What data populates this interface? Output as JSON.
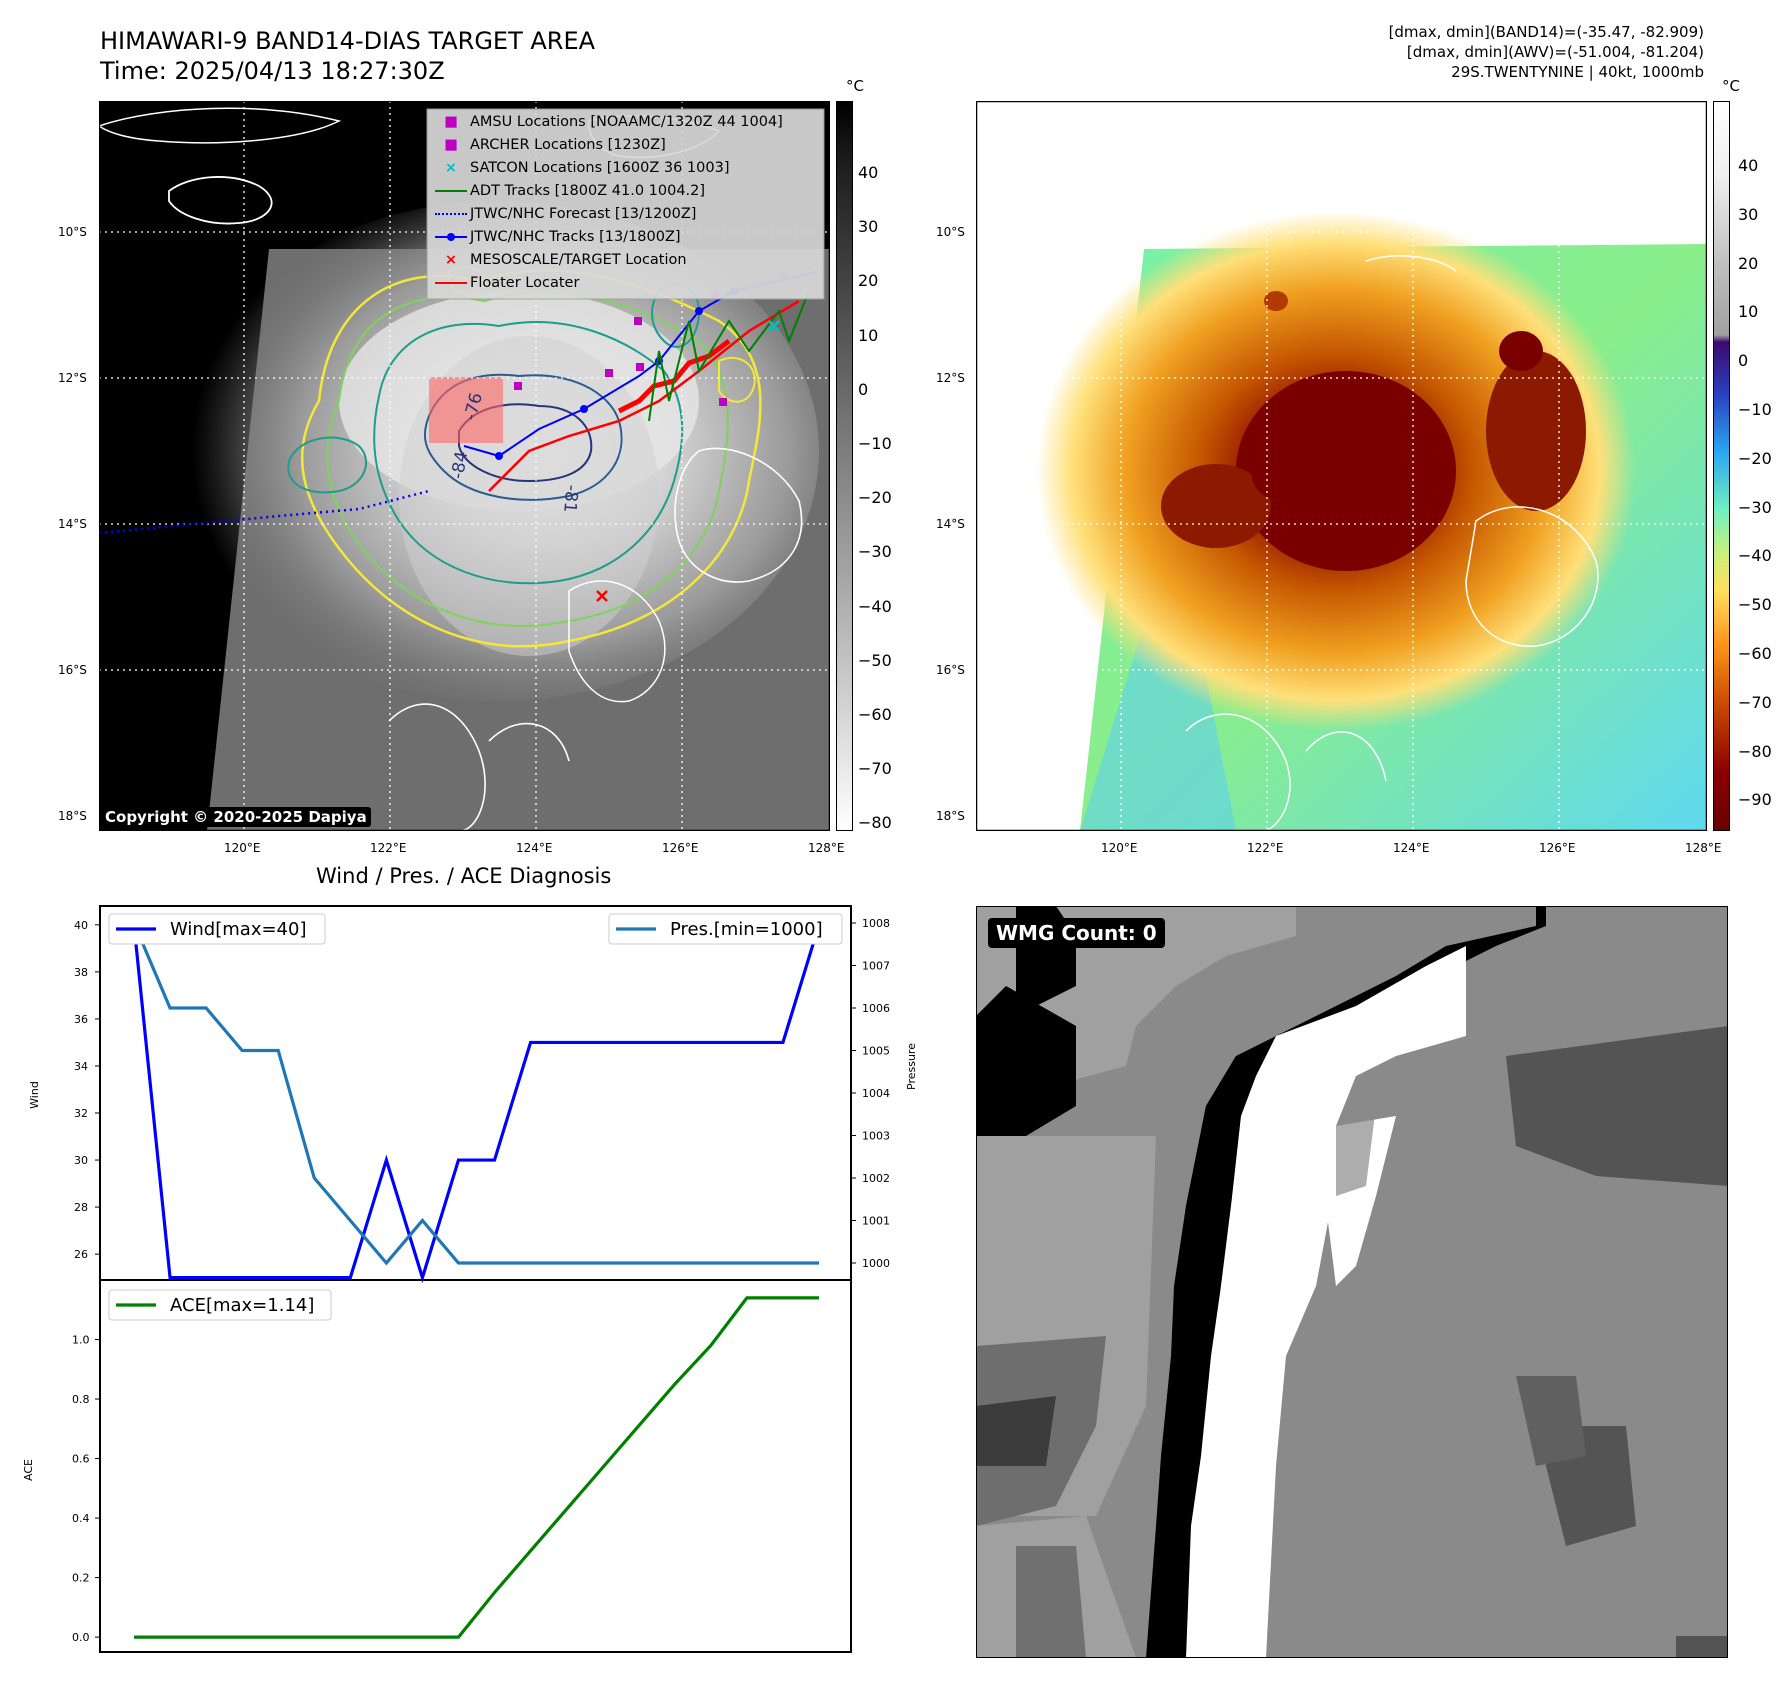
{
  "header": {
    "title_line1": "HIMAWARI-9 BAND14-DIAS TARGET AREA",
    "title_line2": "Time: 2025/04/13 18:27:30Z",
    "right_line1": "[dmax, dmin](BAND14)=(-35.47, -82.909)",
    "right_line2": "[dmax, dmin](AWV)=(-51.004, -81.204)",
    "right_line3": "29S.TWENTYNINE | 40kt, 1000mb"
  },
  "map": {
    "lat_labels": [
      "10°S",
      "12°S",
      "14°S",
      "16°S",
      "18°S"
    ],
    "lon_labels": [
      "120°E",
      "122°E",
      "124°E",
      "126°E",
      "128°E"
    ],
    "copyright": "Copyright © 2020-2025 Dapiya",
    "contour_labels": [
      "-76",
      "-84",
      "-81"
    ],
    "colorbar_unit": "°C",
    "colorbar_left_ticks": [
      "40",
      "30",
      "20",
      "10",
      "0",
      "−10",
      "−20",
      "−30",
      "−40",
      "−50",
      "−60",
      "−70",
      "−80"
    ],
    "colorbar_right_ticks": [
      "40",
      "30",
      "20",
      "10",
      "0",
      "−10",
      "−20",
      "−30",
      "−40",
      "−50",
      "−60",
      "−70",
      "−80",
      "−90"
    ]
  },
  "legend": {
    "items": [
      {
        "label": "AMSU Locations [NOAAMC/1320Z 44 1004]",
        "color": "#c000c0",
        "kind": "square"
      },
      {
        "label": "ARCHER Locations [1230Z]",
        "color": "#c000c0",
        "kind": "square"
      },
      {
        "label": "SATCON Locations [1600Z 36 1003]",
        "color": "#00bfbf",
        "kind": "x"
      },
      {
        "label": "ADT Tracks [1800Z 41.0 1004.2]",
        "color": "#008000",
        "kind": "line"
      },
      {
        "label": "JTWC/NHC Forecast [13/1200Z]",
        "color": "#0000ff",
        "kind": "dotted"
      },
      {
        "label": "JTWC/NHC Tracks [13/1800Z]",
        "color": "#0000ff",
        "kind": "line-dot"
      },
      {
        "label": "MESOSCALE/TARGET Location",
        "color": "#ff0000",
        "kind": "x"
      },
      {
        "label": "Floater Locater",
        "color": "#ff0000",
        "kind": "line"
      }
    ]
  },
  "diagnosis": {
    "title": "Wind / Pres. / ACE Diagnosis",
    "wind_legend": "Wind[max=40]",
    "pres_legend": "Pres.[min=1000]",
    "ace_legend": "ACE[max=1.14]",
    "wind_axis_label": "Wind",
    "pres_axis_label": "Pressure",
    "ace_axis_label": "ACE"
  },
  "wmg": {
    "label": "WMG Count: 0"
  },
  "colors": {
    "wind": "#0000ff",
    "pressure": "#1f77b4",
    "ace": "#008000"
  },
  "chart_data": [
    {
      "type": "line",
      "title": "Wind / Pres. / ACE Diagnosis",
      "ylabel": "Wind",
      "y2label": "Pressure",
      "x": [
        0,
        1,
        2,
        3,
        4,
        5,
        6,
        7,
        8,
        9,
        10,
        11,
        12,
        13,
        14,
        15,
        16,
        17,
        18,
        19
      ],
      "series": [
        {
          "name": "Wind[max=40]",
          "axis": "left",
          "values": [
            40,
            25,
            25,
            25,
            25,
            25,
            25,
            30,
            25,
            30,
            30,
            35,
            35,
            35,
            35,
            35,
            35,
            35,
            35,
            40
          ]
        },
        {
          "name": "Pres.[min=1000]",
          "axis": "right",
          "values": [
            1008,
            1006,
            1006,
            1005,
            1005,
            1002,
            1001,
            1000,
            1001,
            1000,
            1000,
            1000,
            1000,
            1000,
            1000,
            1000,
            1000,
            1000,
            1000,
            1000
          ]
        }
      ],
      "ylim": [
        24.9,
        40.8
      ],
      "y2lim": [
        999.6,
        1008.4
      ],
      "yticks": [
        26,
        28,
        30,
        32,
        34,
        36,
        38,
        40
      ],
      "y2ticks": [
        1000,
        1001,
        1002,
        1003,
        1004,
        1005,
        1006,
        1007,
        1008
      ]
    },
    {
      "type": "line",
      "ylabel": "ACE",
      "x": [
        0,
        1,
        2,
        3,
        4,
        5,
        6,
        7,
        8,
        9,
        10,
        11,
        12,
        13,
        14,
        15,
        16,
        17,
        18,
        19
      ],
      "series": [
        {
          "name": "ACE[max=1.14]",
          "values": [
            0,
            0,
            0,
            0,
            0,
            0,
            0,
            0,
            0,
            0,
            0.15,
            0.29,
            0.43,
            0.57,
            0.71,
            0.85,
            0.98,
            1.14,
            1.14,
            1.14
          ]
        }
      ],
      "ylim": [
        -0.05,
        1.2
      ],
      "yticks": [
        0.0,
        0.2,
        0.4,
        0.6,
        0.8,
        1.0
      ]
    }
  ]
}
